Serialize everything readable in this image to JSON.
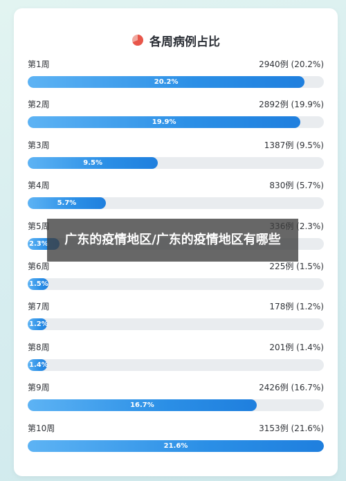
{
  "header": {
    "title": "各周病例占比",
    "icon": "pie-chart-icon",
    "icon_colors": [
      "#e8564a",
      "#f0a89f"
    ]
  },
  "overlay": {
    "text": "广东的疫情地区/广东的疫情地区有哪些"
  },
  "chart_data": {
    "type": "bar",
    "orientation": "horizontal",
    "title": "各周病例占比",
    "categories": [
      "第1周",
      "第2周",
      "第3周",
      "第4周",
      "第5周",
      "第6周",
      "第7周",
      "第8周",
      "第9周",
      "第10周"
    ],
    "values": [
      2940,
      2892,
      1387,
      830,
      336,
      225,
      178,
      201,
      2426,
      3153
    ],
    "percents": [
      20.2,
      19.9,
      9.5,
      5.7,
      2.3,
      1.5,
      1.2,
      1.4,
      16.7,
      21.6
    ],
    "value_labels": [
      "2940例 (20.2%)",
      "2892例 (19.9%)",
      "1387例 (9.5%)",
      "830例 (5.7%)",
      "336例 (2.3%)",
      "225例 (1.5%)",
      "178例 (1.2%)",
      "201例 (1.4%)",
      "2426例 (16.7%)",
      "3153例 (21.6%)"
    ],
    "bar_labels": [
      "20.2%",
      "19.9%",
      "9.5%",
      "5.7%",
      "2.3%",
      "1.5%",
      "1.2%",
      "1.4%",
      "16.7%",
      "21.6%"
    ],
    "xlim": [
      0,
      21.6
    ],
    "bar_color": "#2b8fe6",
    "track_color": "#e9ecef"
  }
}
